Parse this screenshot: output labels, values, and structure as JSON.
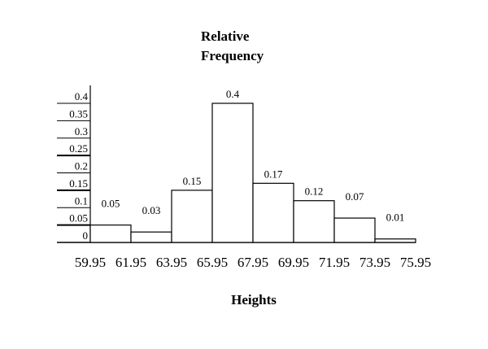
{
  "chart_data": {
    "type": "bar",
    "title_lines": [
      "Relative",
      "Frequency"
    ],
    "xlabel": "Heights",
    "ylabel": "",
    "bin_edges": [
      "59.95",
      "61.95",
      "63.95",
      "65.95",
      "67.95",
      "69.95",
      "71.95",
      "73.95",
      "75.95"
    ],
    "values": [
      0.05,
      0.03,
      0.15,
      0.4,
      0.17,
      0.12,
      0.07,
      0.01
    ],
    "value_labels": [
      "0.05",
      "0.03",
      "0.15",
      "0.4",
      "0.17",
      "0.12",
      "0.07",
      "0.01"
    ],
    "yticks": [
      "0",
      "0.05",
      "0.1",
      "0.15",
      "0.2",
      "0.25",
      "0.3",
      "0.35",
      "0.4"
    ],
    "ylim": [
      0,
      0.45
    ],
    "grid": false,
    "colors": {
      "bar_fill": "#ffffff",
      "bar_stroke": "#000000"
    }
  }
}
